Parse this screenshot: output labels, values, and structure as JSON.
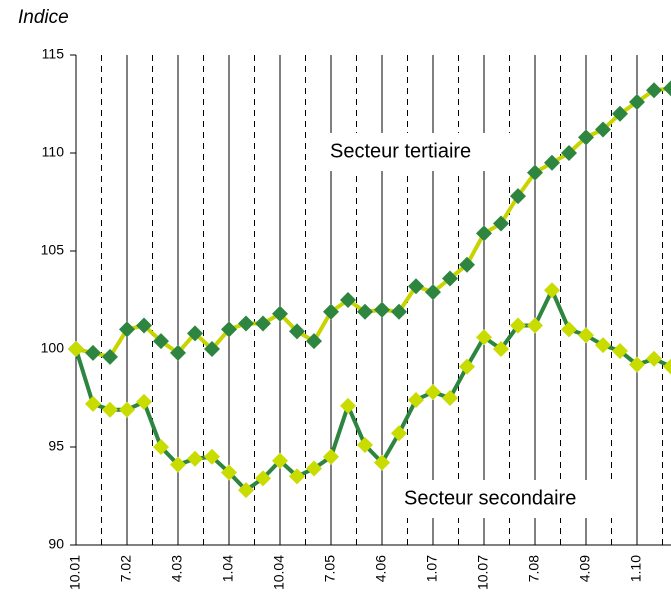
{
  "chart_data": {
    "type": "line",
    "ylabel": "Indice",
    "categories": [
      "10.01",
      null,
      null,
      "7.02",
      null,
      null,
      "4.03",
      null,
      null,
      "1.04",
      null,
      null,
      "10.04",
      null,
      null,
      "7.05",
      null,
      null,
      "4.06",
      null,
      null,
      "1.07",
      null,
      null,
      "10.07",
      null,
      null,
      "7.08",
      null,
      null,
      "4.09",
      null,
      null,
      "1.10",
      null,
      null
    ],
    "series": [
      {
        "name": "Secteur tertiaire",
        "color": "#2e8540",
        "line_color": "#c8d400",
        "values": [
          100,
          99.8,
          99.6,
          101,
          101.2,
          100.4,
          99.8,
          100.8,
          100,
          101,
          101.3,
          101.3,
          101.8,
          100.9,
          100.4,
          101.9,
          102.5,
          101.9,
          102,
          101.9,
          103.2,
          102.9,
          103.6,
          104.3,
          105.9,
          106.4,
          107.8,
          109,
          109.5,
          110,
          110.8,
          111.2,
          112,
          112.6,
          113.2,
          113.3
        ]
      },
      {
        "name": "Secteur secondaire",
        "color": "#c8dc00",
        "line_color": "#2e8540",
        "values": [
          100,
          97.2,
          96.9,
          96.9,
          97.3,
          95,
          94.1,
          94.4,
          94.5,
          93.7,
          92.8,
          93.4,
          94.3,
          93.5,
          93.9,
          94.5,
          97.1,
          95.1,
          94.2,
          95.7,
          97.4,
          97.8,
          97.5,
          99.1,
          100.6,
          100,
          101.2,
          101.2,
          103,
          101,
          100.7,
          100.2,
          99.9,
          99.2,
          99.5,
          99.1
        ]
      }
    ],
    "ylim": [
      90,
      115
    ],
    "yticks": [
      90,
      95,
      100,
      105,
      110,
      115
    ]
  }
}
